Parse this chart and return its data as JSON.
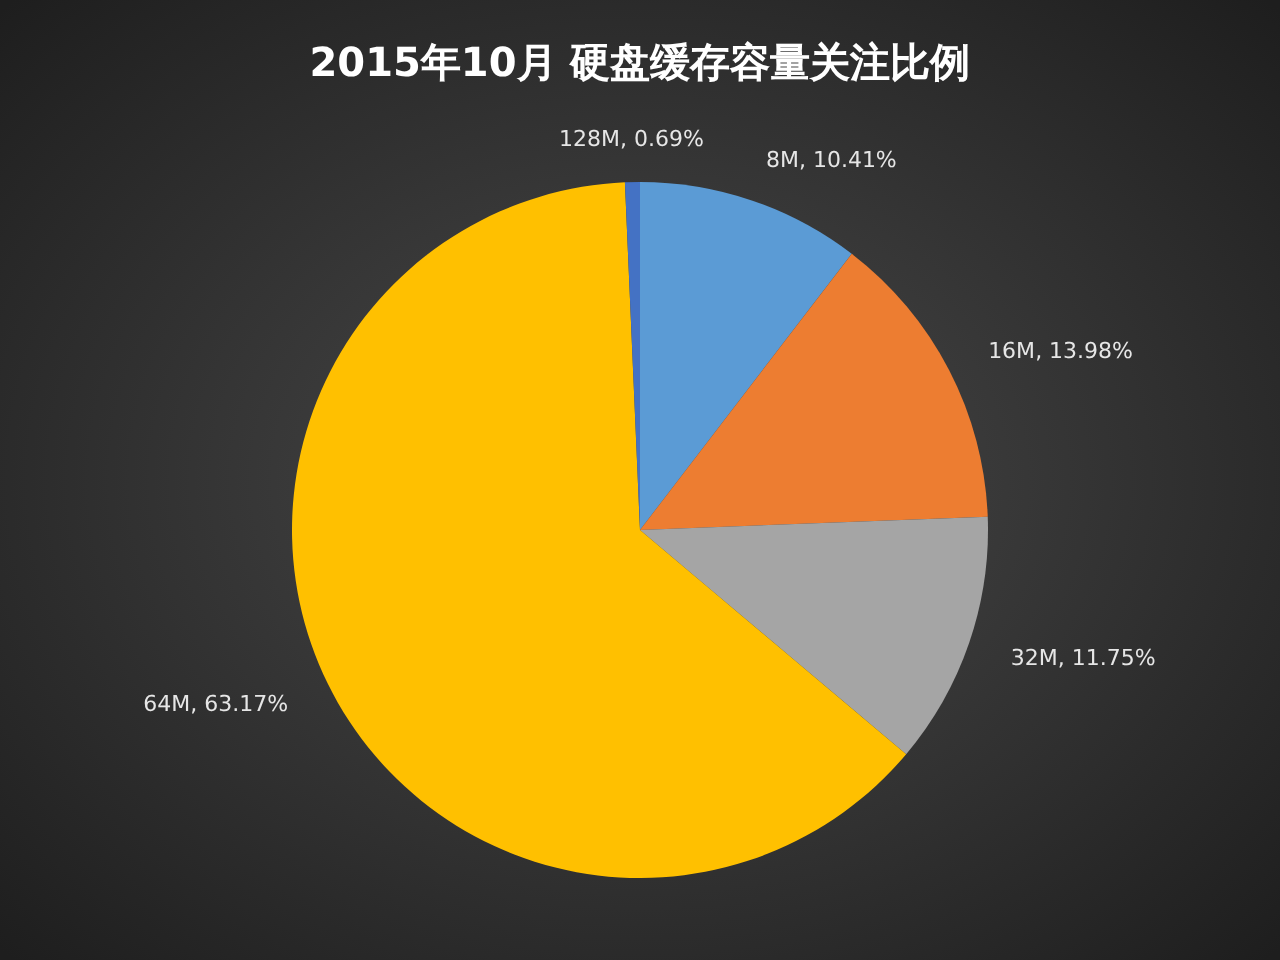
{
  "chart_data": {
    "type": "pie",
    "title": "2015年10月  硬盘缓存容量关注比例",
    "categories": [
      "8M",
      "16M",
      "32M",
      "64M",
      "128M"
    ],
    "values": [
      10.41,
      13.98,
      11.75,
      63.17,
      0.69
    ],
    "colors": [
      "#5b9bd5",
      "#ed7d31",
      "#a5a5a5",
      "#ffc000",
      "#4472c4"
    ],
    "value_labels": [
      ", 10.41%",
      ", 13.98%",
      ", 11.75%",
      ", 63.17%",
      ", 0.69%"
    ],
    "legend": false
  }
}
